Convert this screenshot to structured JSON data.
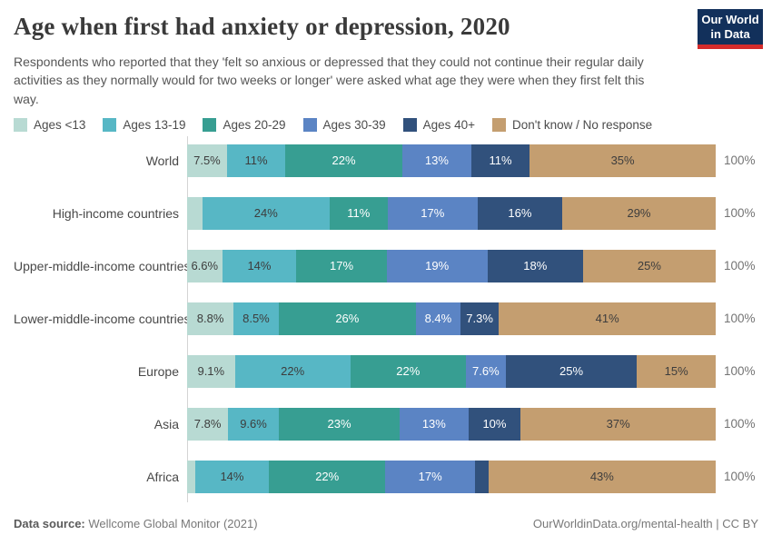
{
  "header": {
    "title": "Age when first had anxiety or depression, 2020",
    "subtitle": "Respondents who reported that they 'felt so anxious or depressed that they could not continue their regular daily activities as they normally would for two weeks or longer' were asked what age they were when they first felt this way.",
    "logo": {
      "line1": "Our World",
      "line2": "in Data",
      "bg_color": "#12305b",
      "accent_color": "#d42b2b"
    }
  },
  "legend": {
    "items": [
      {
        "label": "Ages <13",
        "color": "#b8dad3"
      },
      {
        "label": "Ages 13-19",
        "color": "#57b7c5"
      },
      {
        "label": "Ages 20-29",
        "color": "#379e92"
      },
      {
        "label": "Ages 30-39",
        "color": "#5b84c4"
      },
      {
        "label": "Ages 40+",
        "color": "#31517c"
      },
      {
        "label": "Don't know / No response",
        "color": "#c49e70"
      }
    ]
  },
  "chart_data": {
    "type": "bar",
    "stacked": true,
    "orientation": "horizontal",
    "title": "Age when first had anxiety or depression, 2020",
    "x_range_percent": [
      0,
      100
    ],
    "series_labels": [
      "Ages <13",
      "Ages 13-19",
      "Ages 20-29",
      "Ages 30-39",
      "Ages 40+",
      "Don't know / No response"
    ],
    "series_colors": [
      "#b8dad3",
      "#57b7c5",
      "#379e92",
      "#5b84c4",
      "#31517c",
      "#c49e70"
    ],
    "series_label_styles": [
      "dark",
      "dark",
      "light",
      "light",
      "light",
      "dark"
    ],
    "label_dark_color": "#3d3d3d",
    "label_light_color": "#ffffff",
    "rows": [
      {
        "category": "World",
        "values": [
          7.5,
          11,
          22,
          13,
          11,
          35
        ],
        "labels": [
          "7.5%",
          "11%",
          "22%",
          "13%",
          "11%",
          "35%"
        ],
        "total_label": "100%"
      },
      {
        "category": "High-income countries",
        "values": [
          2.9,
          24,
          11,
          17,
          16,
          29
        ],
        "labels": [
          "",
          "24%",
          "11%",
          "17%",
          "16%",
          "29%"
        ],
        "total_label": "100%"
      },
      {
        "category": "Upper-middle-income countries",
        "values": [
          6.6,
          14,
          17,
          19,
          18,
          25
        ],
        "labels": [
          "6.6%",
          "14%",
          "17%",
          "19%",
          "18%",
          "25%"
        ],
        "total_label": "100%"
      },
      {
        "category": "Lower-middle-income countries",
        "values": [
          8.8,
          8.5,
          26,
          8.4,
          7.3,
          41
        ],
        "labels": [
          "8.8%",
          "8.5%",
          "26%",
          "8.4%",
          "7.3%",
          "41%"
        ],
        "total_label": "100%"
      },
      {
        "category": "Europe",
        "values": [
          9.1,
          22,
          22,
          7.6,
          25,
          15
        ],
        "labels": [
          "9.1%",
          "22%",
          "22%",
          "7.6%",
          "25%",
          "15%"
        ],
        "total_label": "100%"
      },
      {
        "category": "Asia",
        "values": [
          7.8,
          9.6,
          23,
          13,
          10,
          37
        ],
        "labels": [
          "7.8%",
          "9.6%",
          "23%",
          "13%",
          "10%",
          "37%"
        ],
        "total_label": "100%"
      },
      {
        "category": "Africa",
        "values": [
          1.5,
          14,
          22,
          17,
          2.5,
          43
        ],
        "labels": [
          "",
          "14%",
          "22%",
          "17%",
          "",
          "43%"
        ],
        "total_label": "100%"
      }
    ]
  },
  "footer": {
    "source_label": "Data source:",
    "source_value": " Wellcome Global Monitor (2021)",
    "credit": "OurWorldinData.org/mental-health | CC BY"
  }
}
